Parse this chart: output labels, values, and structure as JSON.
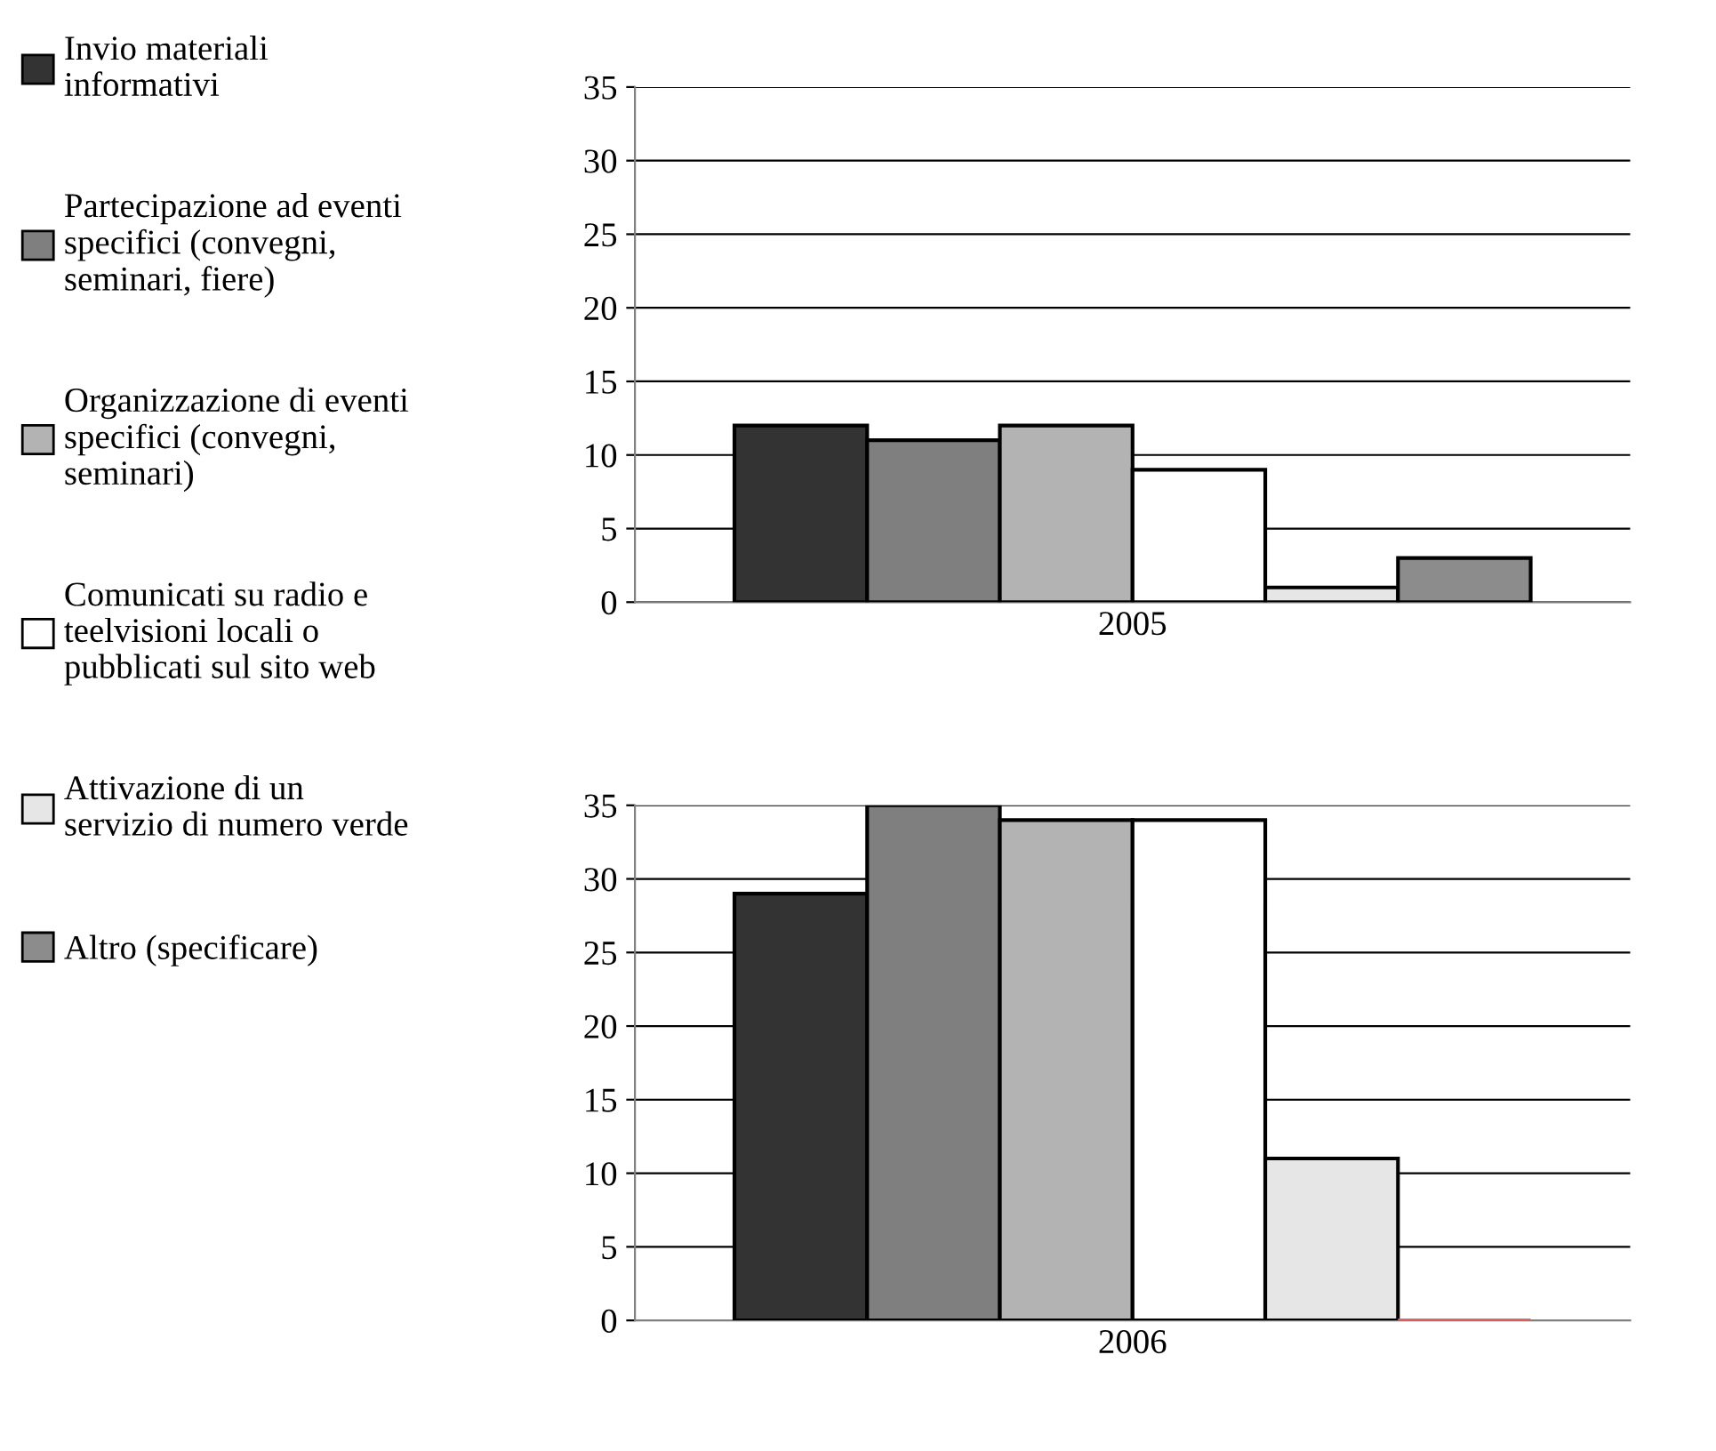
{
  "chart_data": [
    {
      "type": "bar",
      "categories": [
        "2005"
      ],
      "ylim": [
        0,
        35
      ],
      "yticks": [
        0,
        5,
        10,
        15,
        20,
        25,
        30,
        35
      ],
      "grid": "y",
      "legend": "left",
      "series": [
        {
          "name": "Invio materiali informativi",
          "color": "#333333",
          "values": [
            12
          ]
        },
        {
          "name": "Partecipazione ad eventi specifici (convegni, seminari, fiere)",
          "color": "#7f7f7f",
          "values": [
            11
          ]
        },
        {
          "name": "Organizzazione di eventi specifici (convegni, seminari)",
          "color": "#b3b3b3",
          "values": [
            12
          ]
        },
        {
          "name": "Comunicati su radio e teelvisioni locali o pubblicati sul sito web",
          "color": "#ffffff",
          "values": [
            9
          ]
        },
        {
          "name": "Attivazione di un servizio di numero verde",
          "color": "#e6e6e6",
          "values": [
            1
          ]
        },
        {
          "name": "Altro (specificare)",
          "color": "#8c8c8c",
          "values": [
            3
          ]
        }
      ]
    },
    {
      "type": "bar",
      "categories": [
        "2006"
      ],
      "ylim": [
        0,
        35
      ],
      "yticks": [
        0,
        5,
        10,
        15,
        20,
        25,
        30,
        35
      ],
      "grid": "y",
      "series": [
        {
          "color": "#333333",
          "values": [
            29
          ]
        },
        {
          "color": "#7f7f7f",
          "values": [
            35
          ]
        },
        {
          "color": "#b3b3b3",
          "values": [
            34
          ]
        },
        {
          "color": "#ffffff",
          "values": [
            34
          ]
        },
        {
          "color": "#e6e6e6",
          "values": [
            11
          ]
        },
        {
          "color": "#e06666",
          "values": [
            0
          ]
        }
      ]
    }
  ]
}
